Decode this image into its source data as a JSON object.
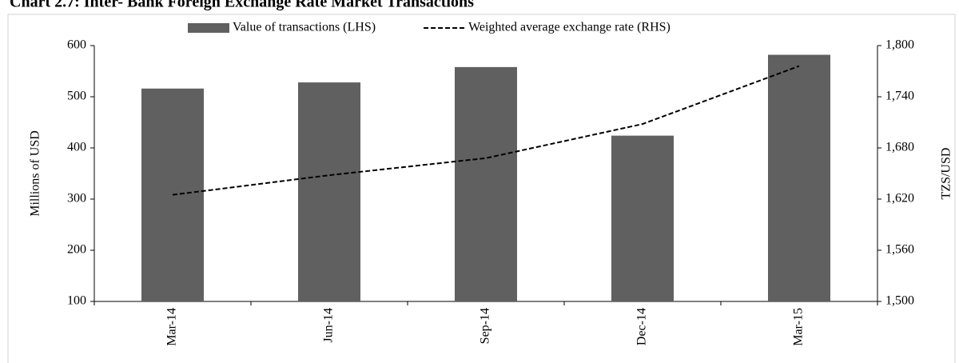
{
  "chart_data": {
    "type": "bar",
    "title": "Chart 2.7: Inter- Bank Foreign Exchange Rate Market Transactions",
    "categories": [
      "Mar-14",
      "Jun-14",
      "Sep-14",
      "Dec-14",
      "Mar-15"
    ],
    "series": [
      {
        "name": "Value of transactions (LHS)",
        "color": "#606060",
        "type": "bar",
        "values": [
          516,
          528,
          558,
          424,
          582
        ]
      },
      {
        "name": "Weighted average exchange rate (RHS)",
        "color": "#000000",
        "type": "line",
        "dashed": true,
        "axis": "y2",
        "values": [
          1625,
          1648,
          1668,
          1708,
          1776
        ]
      }
    ],
    "y_label": "Millions of USD",
    "y2_label": "TZS/USD",
    "ylim": [
      100,
      600
    ],
    "yticks": [
      100,
      200,
      300,
      400,
      500,
      600
    ],
    "y2lim": [
      1500,
      1800
    ],
    "y2ticks": [
      {
        "value": 1500,
        "label": "1,500"
      },
      {
        "value": 1560,
        "label": "1,560"
      },
      {
        "value": 1620,
        "label": "1,620"
      },
      {
        "value": 1680,
        "label": "1,680"
      },
      {
        "value": 1740,
        "label": "1,740"
      },
      {
        "value": 1800,
        "label": "1,800"
      }
    ],
    "legend": "top",
    "grid": false
  }
}
